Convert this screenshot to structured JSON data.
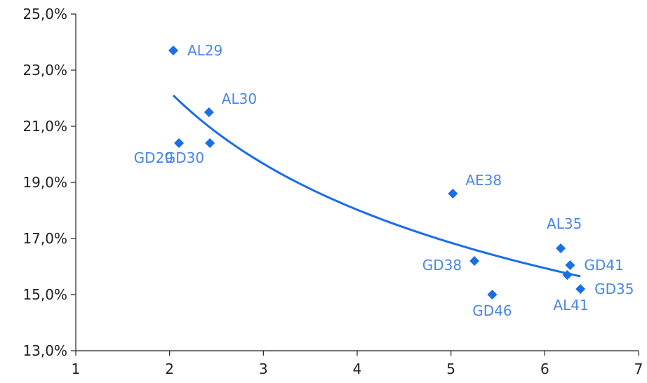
{
  "chart_data": {
    "type": "scatter",
    "title": "",
    "xlabel": "",
    "ylabel": "",
    "xlim": [
      1,
      7
    ],
    "ylim": [
      13.0,
      25.0
    ],
    "grid": false,
    "legend": "none",
    "x_ticks": [
      1,
      2,
      3,
      4,
      5,
      6,
      7
    ],
    "x_tick_labels": [
      "1",
      "2",
      "3",
      "4",
      "5",
      "6",
      "7"
    ],
    "y_ticks": [
      13,
      15,
      17,
      19,
      21,
      23,
      25
    ],
    "y_tick_labels": [
      "13,0%",
      "15,0%",
      "17,0%",
      "19,0%",
      "21,0%",
      "23,0%",
      "25,0%"
    ],
    "points": [
      {
        "label": "AL29",
        "x": 2.04,
        "y": 23.7,
        "label_anchor": "right"
      },
      {
        "label": "AL30",
        "x": 2.42,
        "y": 21.5,
        "label_anchor": "top-right"
      },
      {
        "label": "GD29",
        "x": 2.1,
        "y": 20.4,
        "label_anchor": "bottom-left"
      },
      {
        "label": "GD30",
        "x": 2.43,
        "y": 20.4,
        "label_anchor": "bottom-left"
      },
      {
        "label": "AE38",
        "x": 5.02,
        "y": 18.6,
        "label_anchor": "top-right"
      },
      {
        "label": "AL35",
        "x": 6.17,
        "y": 16.65,
        "label_anchor": "top-left"
      },
      {
        "label": "GD41",
        "x": 6.27,
        "y": 16.05,
        "label_anchor": "right"
      },
      {
        "label": "GD38",
        "x": 5.25,
        "y": 16.2,
        "label_anchor": "left"
      },
      {
        "label": "AL41",
        "x": 6.24,
        "y": 15.7,
        "label_anchor": "bottom-far"
      },
      {
        "label": "GD35",
        "x": 6.38,
        "y": 15.2,
        "label_anchor": "right"
      },
      {
        "label": "GD46",
        "x": 5.44,
        "y": 15.0,
        "label_anchor": "bottom"
      }
    ],
    "trendline": {
      "type": "power",
      "x_range": [
        2.04,
        6.38
      ],
      "start_y": 22.1,
      "end_y": 15.65
    },
    "colors": {
      "marker": "#1A6EE6",
      "trendline": "#1A6EE6",
      "point_label": "#4A86E8",
      "axis": "#222222"
    }
  }
}
